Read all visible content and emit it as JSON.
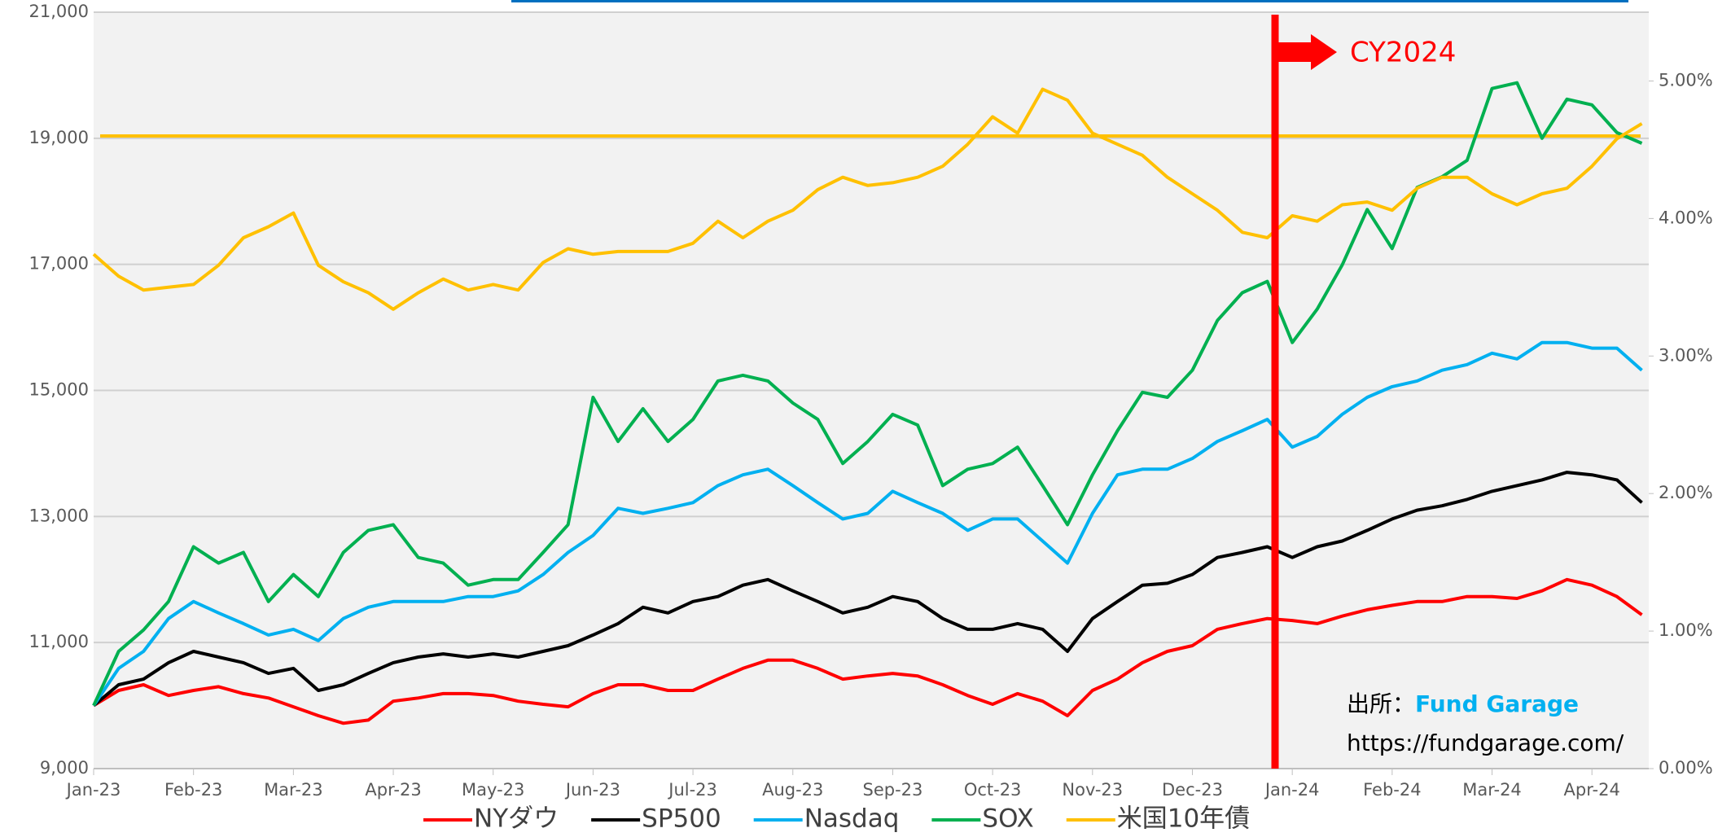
{
  "chart_data": {
    "type": "line",
    "categories": [
      "Jan-23",
      null,
      null,
      null,
      "Feb-23",
      null,
      null,
      null,
      "Mar-23",
      null,
      null,
      null,
      "Apr-23",
      null,
      null,
      null,
      "May-23",
      null,
      null,
      null,
      "Jun-23",
      null,
      null,
      null,
      "Jul-23",
      null,
      null,
      null,
      "Aug-23",
      null,
      null,
      null,
      "Sep-23",
      null,
      null,
      null,
      "Oct-23",
      null,
      null,
      null,
      "Nov-23",
      null,
      null,
      null,
      "Dec-23",
      null,
      null,
      null,
      "Jan-24",
      null,
      null,
      null,
      "Feb-24",
      null,
      null,
      null,
      "Mar-24",
      null,
      null,
      null,
      "Apr-24",
      null,
      null
    ],
    "series": [
      {
        "name": "NYダウ",
        "color": "#ff0000",
        "values": [
          10000,
          10240,
          10330,
          10160,
          10240,
          10300,
          10190,
          10120,
          9980,
          9840,
          9720,
          9770,
          10070,
          10120,
          10190,
          10190,
          10160,
          10070,
          10020,
          9980,
          10190,
          10330,
          10330,
          10240,
          10240,
          10420,
          10590,
          10720,
          10720,
          10590,
          10420,
          10470,
          10510,
          10470,
          10330,
          10160,
          10020,
          10190,
          10070,
          9840,
          10240,
          10420,
          10680,
          10860,
          10950,
          11210,
          11300,
          11380,
          11350,
          11300,
          11420,
          11520,
          11590,
          11650,
          11650,
          11730,
          11730,
          11700,
          11820,
          12000,
          11910,
          11730,
          11440
        ]
      },
      {
        "name": "SP500",
        "color": "#000000",
        "values": [
          10000,
          10330,
          10420,
          10680,
          10860,
          10770,
          10680,
          10510,
          10590,
          10240,
          10330,
          10510,
          10680,
          10770,
          10820,
          10770,
          10820,
          10770,
          10860,
          10950,
          11120,
          11300,
          11560,
          11470,
          11650,
          11730,
          11910,
          12000,
          11820,
          11650,
          11470,
          11560,
          11730,
          11650,
          11380,
          11210,
          11210,
          11300,
          11210,
          10860,
          11380,
          11650,
          11910,
          11940,
          12080,
          12350,
          12430,
          12520,
          12350,
          12520,
          12610,
          12780,
          12960,
          13100,
          13170,
          13270,
          13400,
          13490,
          13580,
          13700,
          13660,
          13580,
          13220
        ]
      },
      {
        "name": "Nasdaq",
        "color": "#00b0f0",
        "values": [
          10000,
          10590,
          10860,
          11380,
          11650,
          11470,
          11300,
          11120,
          11210,
          11030,
          11380,
          11560,
          11650,
          11650,
          11650,
          11730,
          11730,
          11820,
          12080,
          12430,
          12700,
          13130,
          13050,
          13130,
          13220,
          13490,
          13660,
          13750,
          13490,
          13220,
          12960,
          13050,
          13400,
          13220,
          13050,
          12780,
          12960,
          12960,
          12610,
          12260,
          13050,
          13660,
          13750,
          13750,
          13920,
          14190,
          14360,
          14540,
          14100,
          14270,
          14620,
          14890,
          15060,
          15150,
          15320,
          15410,
          15590,
          15500,
          15760,
          15760,
          15670,
          15670,
          15320
        ]
      },
      {
        "name": "SOX",
        "color": "#00b050",
        "values": [
          10000,
          10860,
          11200,
          11650,
          12520,
          12260,
          12430,
          11650,
          12080,
          11730,
          12430,
          12780,
          12870,
          12350,
          12260,
          11910,
          12000,
          12000,
          12430,
          12870,
          14890,
          14190,
          14710,
          14190,
          14540,
          15150,
          15240,
          15150,
          14800,
          14540,
          13840,
          14190,
          14620,
          14450,
          13490,
          13750,
          13840,
          14100,
          13490,
          12870,
          13660,
          14360,
          14970,
          14890,
          15320,
          16110,
          16550,
          16730,
          15760,
          16290,
          16990,
          17870,
          17250,
          18220,
          18390,
          18650,
          19790,
          19880,
          19000,
          19620,
          19530,
          19090,
          18920
        ]
      },
      {
        "name": "米国10年債",
        "color": "#ffc000",
        "axis": "y2",
        "values": [
          3.74,
          3.58,
          3.48,
          3.5,
          3.52,
          3.66,
          3.86,
          3.94,
          4.04,
          3.66,
          3.54,
          3.46,
          3.34,
          3.46,
          3.56,
          3.48,
          3.52,
          3.48,
          3.68,
          3.78,
          3.74,
          3.76,
          3.76,
          3.76,
          3.82,
          3.98,
          3.86,
          3.98,
          4.06,
          4.21,
          4.3,
          4.24,
          4.26,
          4.3,
          4.38,
          4.54,
          4.74,
          4.62,
          4.94,
          4.86,
          4.62,
          4.54,
          4.46,
          4.3,
          4.18,
          4.06,
          3.9,
          3.86,
          4.02,
          3.98,
          4.1,
          4.12,
          4.06,
          4.22,
          4.3,
          4.3,
          4.18,
          4.1,
          4.18,
          4.22,
          4.38,
          4.58,
          4.69
        ]
      }
    ],
    "reference_lines": [
      {
        "value": 4.6,
        "axis": "y2",
        "color": "#ffc000"
      }
    ],
    "ylim": [
      9000,
      21000
    ],
    "yticks": [
      {
        "value": 9000,
        "label": "9,000"
      },
      {
        "value": 11000,
        "label": "11,000"
      },
      {
        "value": 13000,
        "label": "13,000"
      },
      {
        "value": 15000,
        "label": "15,000"
      },
      {
        "value": 17000,
        "label": "17,000"
      },
      {
        "value": 19000,
        "label": "19,000"
      },
      {
        "value": 21000,
        "label": "21,000"
      }
    ],
    "y2lim": [
      0,
      5.5
    ],
    "y2ticks": [
      {
        "value": 0,
        "label": "0.00%"
      },
      {
        "value": 1,
        "label": "1.00%"
      },
      {
        "value": 2,
        "label": "2.00%"
      },
      {
        "value": 3,
        "label": "3.00%"
      },
      {
        "value": 4,
        "label": "4.00%"
      },
      {
        "value": 5,
        "label": "5.00%"
      }
    ],
    "grid": true,
    "legend": "bottom",
    "annotation": {
      "text": "CY2024",
      "color": "#ff0000"
    },
    "source": {
      "label": "出所：",
      "name": "Fund Garage",
      "url": "https://fundgarage.com/"
    }
  }
}
